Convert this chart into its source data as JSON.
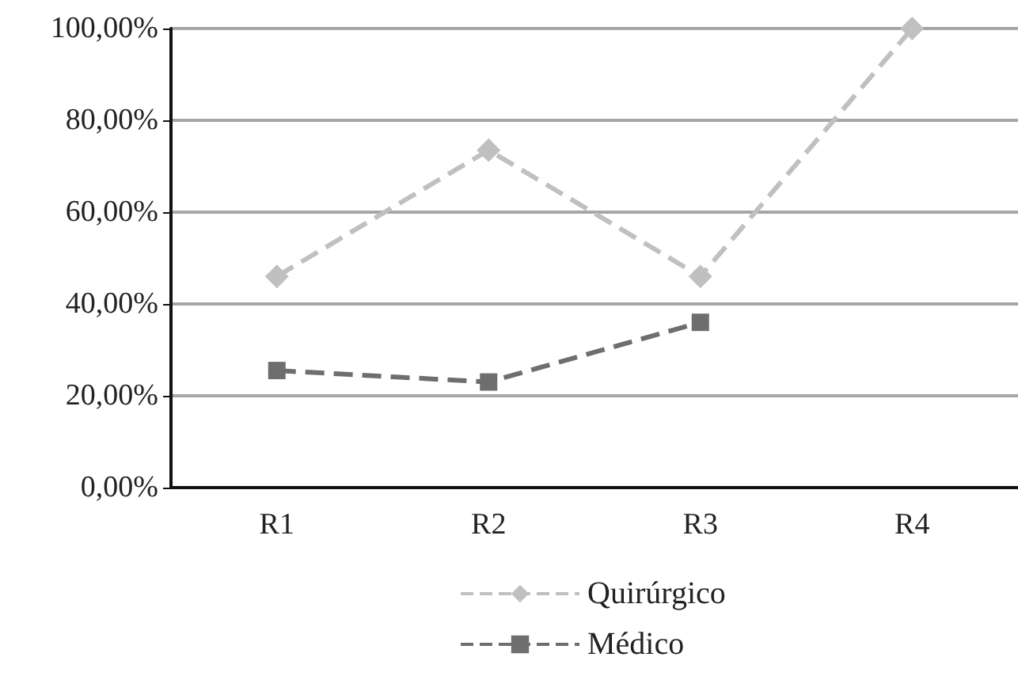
{
  "chart_data": {
    "type": "line",
    "categories": [
      "R1",
      "R2",
      "R3",
      "R4"
    ],
    "series": [
      {
        "name": "Quirúrgico",
        "color": "#c0c0c0",
        "marker": "diamond",
        "values": [
          46,
          73.5,
          46,
          100
        ]
      },
      {
        "name": "Médico",
        "color": "#6e6e6e",
        "marker": "square",
        "values": [
          25.5,
          23,
          36,
          null
        ]
      }
    ],
    "ylim": [
      0,
      100
    ],
    "yticks": [
      {
        "value": 0,
        "label": "0,00%"
      },
      {
        "value": 20,
        "label": "20,00%"
      },
      {
        "value": 40,
        "label": "40,00%"
      },
      {
        "value": 60,
        "label": "60,00%"
      },
      {
        "value": 80,
        "label": "80,00%"
      },
      {
        "value": 100,
        "label": "100,00%"
      }
    ],
    "grid": "y",
    "legend": "bottom",
    "line_style": "dashed"
  }
}
